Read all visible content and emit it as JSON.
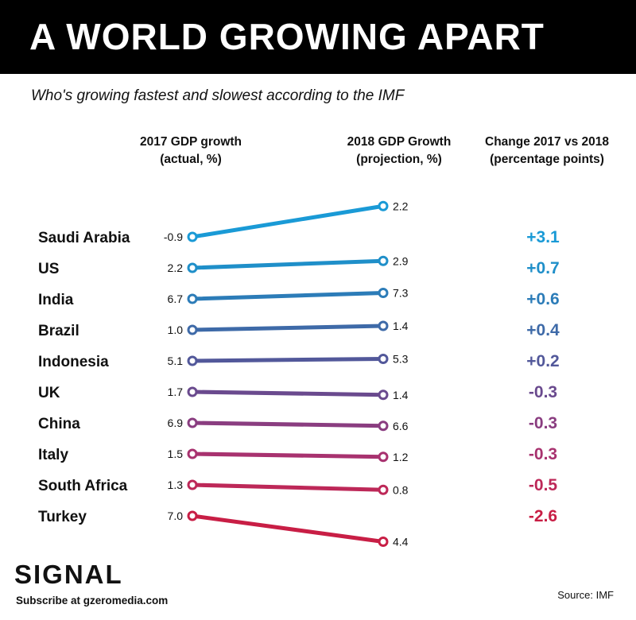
{
  "header": {
    "title": "A WORLD GROWING APART",
    "subtitle": "Who's growing fastest and slowest according to the IMF"
  },
  "columns": {
    "col2017_line1": "2017 GDP growth",
    "col2017_line2": "(actual, %)",
    "col2018_line1": "2018 GDP Growth",
    "col2018_line2": "(projection, %)",
    "change_line1": "Change 2017 vs 2018",
    "change_line2": "(percentage points)"
  },
  "footer": {
    "logo": "SIGNAL",
    "subscribe": "Subscribe at gzeromedia.com",
    "source": "Source: IMF"
  },
  "chart_data": {
    "type": "line",
    "title": "A WORLD GROWING APART",
    "subtitle": "Who's growing fastest and slowest according to the IMF",
    "x": [
      "2017",
      "2018"
    ],
    "series": [
      {
        "name": "Saudi Arabia",
        "values": [
          -0.9,
          2.2
        ],
        "change": "+3.1",
        "color": "#1a9ad6"
      },
      {
        "name": "US",
        "values": [
          2.2,
          2.9
        ],
        "change": "+0.7",
        "color": "#1f8fc9"
      },
      {
        "name": "India",
        "values": [
          6.7,
          7.3
        ],
        "change": "+0.6",
        "color": "#2c7cb8"
      },
      {
        "name": "Brazil",
        "values": [
          1.0,
          1.4
        ],
        "change": "+0.4",
        "color": "#3e6aa8"
      },
      {
        "name": "Indonesia",
        "values": [
          5.1,
          5.3
        ],
        "change": "+0.2",
        "color": "#52589a"
      },
      {
        "name": "UK",
        "values": [
          1.7,
          1.4
        ],
        "change": "-0.3",
        "color": "#6a4a8e"
      },
      {
        "name": "China",
        "values": [
          6.9,
          6.6
        ],
        "change": "-0.3",
        "color": "#8a3d80"
      },
      {
        "name": "Italy",
        "values": [
          1.5,
          1.2
        ],
        "change": "-0.3",
        "color": "#a8326f"
      },
      {
        "name": "South Africa",
        "values": [
          1.3,
          0.8
        ],
        "change": "-0.5",
        "color": "#bd2858"
      },
      {
        "name": "Turkey",
        "values": [
          7.0,
          4.4
        ],
        "change": "-2.6",
        "color": "#c81e45"
      }
    ]
  }
}
